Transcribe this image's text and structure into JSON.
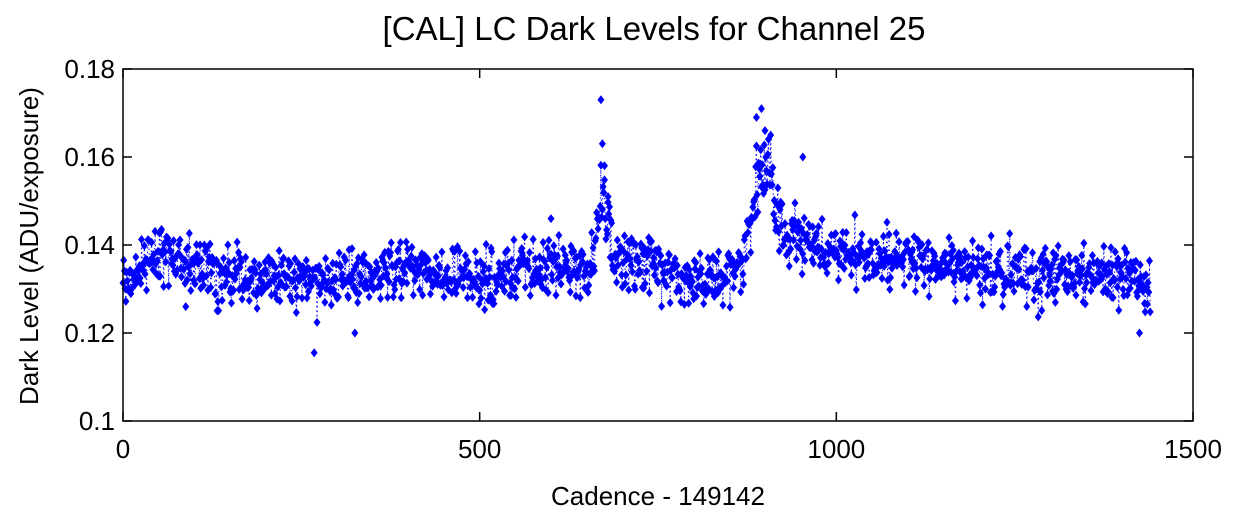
{
  "chart_data": {
    "type": "scatter",
    "title": "[CAL] LC Dark Levels for Channel 25",
    "xlabel": "Cadence - 149142",
    "ylabel": "Dark Level (ADU/exposure)",
    "xlim": [
      0,
      1500
    ],
    "ylim": [
      0.1,
      0.18
    ],
    "xticks": [
      0,
      500,
      1000,
      1500
    ],
    "xtick_labels": [
      "0",
      "500",
      "1000",
      "1500"
    ],
    "yticks": [
      0.1,
      0.12,
      0.14,
      0.16,
      0.18
    ],
    "ytick_labels": [
      "0.1",
      "0.12",
      "0.14",
      "0.16",
      "0.18"
    ],
    "marker": "diamond",
    "line_style": "dotted",
    "color": "#0000ff",
    "grid": false,
    "profile": {
      "x": [
        0,
        20,
        40,
        60,
        80,
        100,
        150,
        200,
        250,
        280,
        300,
        350,
        400,
        450,
        500,
        550,
        600,
        640,
        660,
        670,
        680,
        690,
        700,
        750,
        800,
        850,
        870,
        880,
        890,
        900,
        910,
        920,
        930,
        950,
        970,
        1000,
        1050,
        1100,
        1150,
        1200,
        1250,
        1300,
        1350,
        1400,
        1440
      ],
      "y": [
        0.132,
        0.134,
        0.137,
        0.139,
        0.137,
        0.135,
        0.133,
        0.133,
        0.132,
        0.131,
        0.132,
        0.133,
        0.134,
        0.134,
        0.133,
        0.134,
        0.135,
        0.134,
        0.135,
        0.155,
        0.144,
        0.137,
        0.136,
        0.133,
        0.132,
        0.133,
        0.138,
        0.146,
        0.157,
        0.159,
        0.155,
        0.145,
        0.14,
        0.141,
        0.139,
        0.138,
        0.137,
        0.137,
        0.135,
        0.134,
        0.133,
        0.132,
        0.133,
        0.133,
        0.132
      ]
    },
    "outliers": [
      {
        "x": 268,
        "y": 0.1155
      },
      {
        "x": 670,
        "y": 0.173
      },
      {
        "x": 672,
        "y": 0.163
      },
      {
        "x": 675,
        "y": 0.158
      },
      {
        "x": 680,
        "y": 0.151
      },
      {
        "x": 685,
        "y": 0.145
      },
      {
        "x": 895,
        "y": 0.171
      },
      {
        "x": 888,
        "y": 0.169
      },
      {
        "x": 900,
        "y": 0.166
      },
      {
        "x": 905,
        "y": 0.164
      },
      {
        "x": 953,
        "y": 0.16
      },
      {
        "x": 1425,
        "y": 0.12
      },
      {
        "x": 600,
        "y": 0.146
      },
      {
        "x": 88,
        "y": 0.126
      },
      {
        "x": 325,
        "y": 0.12
      }
    ]
  }
}
